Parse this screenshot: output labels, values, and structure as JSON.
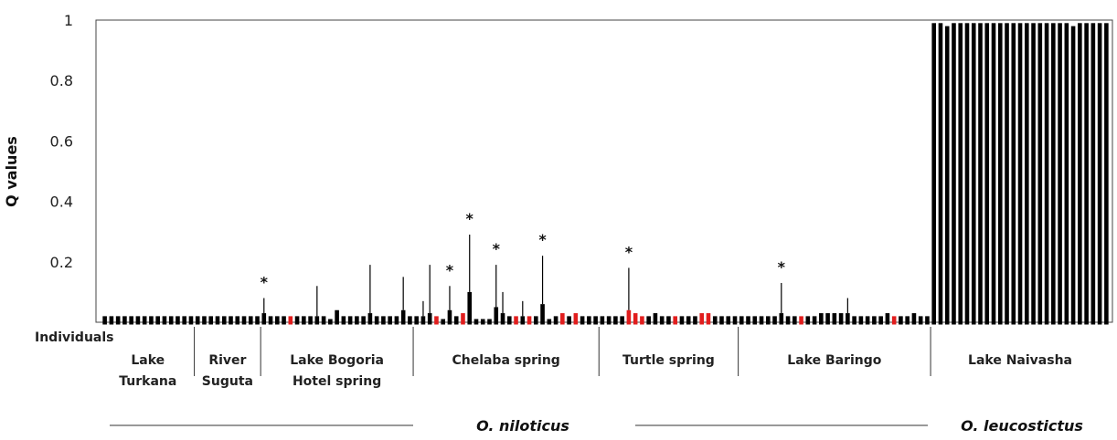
{
  "chart_data": {
    "type": "bar",
    "ylabel": "Q values",
    "xlabel": "Individuals",
    "ylim": [
      0,
      1
    ],
    "yticks": [
      {
        "value": 1,
        "label": "1"
      },
      {
        "value": 0.8,
        "label": "0.8"
      },
      {
        "value": 0.6,
        "label": "0.6"
      },
      {
        "value": 0.4,
        "label": "0.4"
      },
      {
        "value": 0.2,
        "label": "0.2"
      }
    ],
    "grid": false,
    "colors": {
      "default": "#000000",
      "highlight": "#e11d1d"
    },
    "groups": [
      {
        "label_lines": [
          "Lake",
          "Turkana"
        ],
        "n": 14
      },
      {
        "label_lines": [
          "River",
          "Suguta"
        ],
        "n": 10
      },
      {
        "label_lines": [
          "Lake Bogoria",
          "Hotel spring"
        ],
        "n": 23
      },
      {
        "label_lines": [
          "Chelaba spring"
        ],
        "n": 28
      },
      {
        "label_lines": [
          "Turtle spring"
        ],
        "n": 21
      },
      {
        "label_lines": [
          "Lake Baringo"
        ],
        "n": 29
      },
      {
        "label_lines": [
          "Lake Naivasha"
        ],
        "n": 27
      }
    ],
    "bars": [
      {
        "value": 0.02,
        "err": 0,
        "highlight": false
      },
      {
        "value": 0.02,
        "err": 0,
        "highlight": false
      },
      {
        "value": 0.02,
        "err": 0,
        "highlight": false
      },
      {
        "value": 0.02,
        "err": 0,
        "highlight": false
      },
      {
        "value": 0.02,
        "err": 0,
        "highlight": false
      },
      {
        "value": 0.02,
        "err": 0,
        "highlight": false
      },
      {
        "value": 0.02,
        "err": 0,
        "highlight": false
      },
      {
        "value": 0.02,
        "err": 0,
        "highlight": false
      },
      {
        "value": 0.02,
        "err": 0,
        "highlight": false
      },
      {
        "value": 0.02,
        "err": 0,
        "highlight": false
      },
      {
        "value": 0.02,
        "err": 0,
        "highlight": false
      },
      {
        "value": 0.02,
        "err": 0,
        "highlight": false
      },
      {
        "value": 0.02,
        "err": 0,
        "highlight": false
      },
      {
        "value": 0.02,
        "err": 0,
        "highlight": false
      },
      {
        "value": 0.02,
        "err": 0,
        "highlight": false
      },
      {
        "value": 0.02,
        "err": 0,
        "highlight": false
      },
      {
        "value": 0.02,
        "err": 0,
        "highlight": false
      },
      {
        "value": 0.02,
        "err": 0,
        "highlight": false
      },
      {
        "value": 0.02,
        "err": 0,
        "highlight": false
      },
      {
        "value": 0.02,
        "err": 0,
        "highlight": false
      },
      {
        "value": 0.02,
        "err": 0,
        "highlight": false
      },
      {
        "value": 0.02,
        "err": 0,
        "highlight": false
      },
      {
        "value": 0.02,
        "err": 0,
        "highlight": false
      },
      {
        "value": 0.02,
        "err": 0,
        "highlight": false
      },
      {
        "value": 0.03,
        "err": 0.05,
        "highlight": false,
        "star": true
      },
      {
        "value": 0.02,
        "err": 0,
        "highlight": false
      },
      {
        "value": 0.02,
        "err": 0,
        "highlight": false
      },
      {
        "value": 0.02,
        "err": 0,
        "highlight": false
      },
      {
        "value": 0.02,
        "err": 0,
        "highlight": true
      },
      {
        "value": 0.02,
        "err": 0,
        "highlight": false
      },
      {
        "value": 0.02,
        "err": 0,
        "highlight": false
      },
      {
        "value": 0.02,
        "err": 0,
        "highlight": false
      },
      {
        "value": 0.02,
        "err": 0.1,
        "highlight": false
      },
      {
        "value": 0.02,
        "err": 0,
        "highlight": false
      },
      {
        "value": 0.01,
        "err": 0,
        "highlight": false
      },
      {
        "value": 0.04,
        "err": 0,
        "highlight": false
      },
      {
        "value": 0.02,
        "err": 0,
        "highlight": false
      },
      {
        "value": 0.02,
        "err": 0,
        "highlight": false
      },
      {
        "value": 0.02,
        "err": 0,
        "highlight": false
      },
      {
        "value": 0.02,
        "err": 0,
        "highlight": false
      },
      {
        "value": 0.03,
        "err": 0.16,
        "highlight": false
      },
      {
        "value": 0.02,
        "err": 0,
        "highlight": false
      },
      {
        "value": 0.02,
        "err": 0,
        "highlight": false
      },
      {
        "value": 0.02,
        "err": 0,
        "highlight": false
      },
      {
        "value": 0.02,
        "err": 0,
        "highlight": false
      },
      {
        "value": 0.04,
        "err": 0.11,
        "highlight": false
      },
      {
        "value": 0.02,
        "err": 0,
        "highlight": false
      },
      {
        "value": 0.02,
        "err": 0,
        "highlight": false
      },
      {
        "value": 0.02,
        "err": 0.05,
        "highlight": false
      },
      {
        "value": 0.03,
        "err": 0.16,
        "highlight": false
      },
      {
        "value": 0.02,
        "err": 0,
        "highlight": true
      },
      {
        "value": 0.01,
        "err": 0,
        "highlight": false
      },
      {
        "value": 0.04,
        "err": 0.08,
        "highlight": false,
        "star": true
      },
      {
        "value": 0.02,
        "err": 0,
        "highlight": false
      },
      {
        "value": 0.03,
        "err": 0,
        "highlight": true
      },
      {
        "value": 0.1,
        "err": 0.19,
        "highlight": false,
        "star": true
      },
      {
        "value": 0.01,
        "err": 0,
        "highlight": false
      },
      {
        "value": 0.01,
        "err": 0,
        "highlight": false
      },
      {
        "value": 0.01,
        "err": 0,
        "highlight": false
      },
      {
        "value": 0.05,
        "err": 0.14,
        "highlight": false,
        "star": true
      },
      {
        "value": 0.03,
        "err": 0.07,
        "highlight": false
      },
      {
        "value": 0.02,
        "err": 0,
        "highlight": false
      },
      {
        "value": 0.02,
        "err": 0,
        "highlight": true
      },
      {
        "value": 0.02,
        "err": 0.05,
        "highlight": false
      },
      {
        "value": 0.02,
        "err": 0,
        "highlight": true
      },
      {
        "value": 0.02,
        "err": 0,
        "highlight": false
      },
      {
        "value": 0.06,
        "err": 0.16,
        "highlight": false,
        "star": true
      },
      {
        "value": 0.01,
        "err": 0,
        "highlight": false
      },
      {
        "value": 0.02,
        "err": 0,
        "highlight": false
      },
      {
        "value": 0.03,
        "err": 0,
        "highlight": true
      },
      {
        "value": 0.02,
        "err": 0,
        "highlight": false
      },
      {
        "value": 0.03,
        "err": 0,
        "highlight": true
      },
      {
        "value": 0.02,
        "err": 0,
        "highlight": false
      },
      {
        "value": 0.02,
        "err": 0,
        "highlight": false
      },
      {
        "value": 0.02,
        "err": 0,
        "highlight": false
      },
      {
        "value": 0.02,
        "err": 0,
        "highlight": false
      },
      {
        "value": 0.02,
        "err": 0,
        "highlight": false
      },
      {
        "value": 0.02,
        "err": 0,
        "highlight": false
      },
      {
        "value": 0.02,
        "err": 0,
        "highlight": false
      },
      {
        "value": 0.04,
        "err": 0.14,
        "highlight": true,
        "star": true
      },
      {
        "value": 0.03,
        "err": 0,
        "highlight": true
      },
      {
        "value": 0.02,
        "err": 0,
        "highlight": true
      },
      {
        "value": 0.02,
        "err": 0,
        "highlight": false
      },
      {
        "value": 0.03,
        "err": 0,
        "highlight": false
      },
      {
        "value": 0.02,
        "err": 0,
        "highlight": false
      },
      {
        "value": 0.02,
        "err": 0,
        "highlight": false
      },
      {
        "value": 0.02,
        "err": 0,
        "highlight": true
      },
      {
        "value": 0.02,
        "err": 0,
        "highlight": false
      },
      {
        "value": 0.02,
        "err": 0,
        "highlight": false
      },
      {
        "value": 0.02,
        "err": 0,
        "highlight": false
      },
      {
        "value": 0.03,
        "err": 0,
        "highlight": true
      },
      {
        "value": 0.03,
        "err": 0,
        "highlight": true
      },
      {
        "value": 0.02,
        "err": 0,
        "highlight": false
      },
      {
        "value": 0.02,
        "err": 0,
        "highlight": false
      },
      {
        "value": 0.02,
        "err": 0,
        "highlight": false
      },
      {
        "value": 0.02,
        "err": 0,
        "highlight": false
      },
      {
        "value": 0.02,
        "err": 0,
        "highlight": false
      },
      {
        "value": 0.02,
        "err": 0,
        "highlight": false
      },
      {
        "value": 0.02,
        "err": 0,
        "highlight": false
      },
      {
        "value": 0.02,
        "err": 0,
        "highlight": false
      },
      {
        "value": 0.02,
        "err": 0,
        "highlight": false
      },
      {
        "value": 0.02,
        "err": 0,
        "highlight": false
      },
      {
        "value": 0.03,
        "err": 0.1,
        "highlight": false,
        "star": true
      },
      {
        "value": 0.02,
        "err": 0,
        "highlight": false
      },
      {
        "value": 0.02,
        "err": 0,
        "highlight": false
      },
      {
        "value": 0.02,
        "err": 0,
        "highlight": true
      },
      {
        "value": 0.02,
        "err": 0,
        "highlight": false
      },
      {
        "value": 0.02,
        "err": 0,
        "highlight": false
      },
      {
        "value": 0.03,
        "err": 0,
        "highlight": false
      },
      {
        "value": 0.03,
        "err": 0,
        "highlight": false
      },
      {
        "value": 0.03,
        "err": 0,
        "highlight": false
      },
      {
        "value": 0.03,
        "err": 0,
        "highlight": false
      },
      {
        "value": 0.03,
        "err": 0.05,
        "highlight": false
      },
      {
        "value": 0.02,
        "err": 0,
        "highlight": false
      },
      {
        "value": 0.02,
        "err": 0,
        "highlight": false
      },
      {
        "value": 0.02,
        "err": 0,
        "highlight": false
      },
      {
        "value": 0.02,
        "err": 0,
        "highlight": false
      },
      {
        "value": 0.02,
        "err": 0,
        "highlight": false
      },
      {
        "value": 0.03,
        "err": 0,
        "highlight": false
      },
      {
        "value": 0.02,
        "err": 0,
        "highlight": true
      },
      {
        "value": 0.02,
        "err": 0,
        "highlight": false
      },
      {
        "value": 0.02,
        "err": 0,
        "highlight": false
      },
      {
        "value": 0.03,
        "err": 0,
        "highlight": false
      },
      {
        "value": 0.02,
        "err": 0,
        "highlight": false
      },
      {
        "value": 0.02,
        "err": 0,
        "highlight": false
      },
      {
        "value": 0.99,
        "err": 0,
        "highlight": false
      },
      {
        "value": 0.99,
        "err": 0,
        "highlight": false
      },
      {
        "value": 0.98,
        "err": 0,
        "highlight": false
      },
      {
        "value": 0.99,
        "err": 0,
        "highlight": false
      },
      {
        "value": 0.99,
        "err": 0,
        "highlight": false
      },
      {
        "value": 0.99,
        "err": 0,
        "highlight": false
      },
      {
        "value": 0.99,
        "err": 0,
        "highlight": false
      },
      {
        "value": 0.99,
        "err": 0,
        "highlight": false
      },
      {
        "value": 0.99,
        "err": 0,
        "highlight": false
      },
      {
        "value": 0.99,
        "err": 0,
        "highlight": false
      },
      {
        "value": 0.99,
        "err": 0,
        "highlight": false
      },
      {
        "value": 0.99,
        "err": 0,
        "highlight": false
      },
      {
        "value": 0.99,
        "err": 0,
        "highlight": false
      },
      {
        "value": 0.99,
        "err": 0,
        "highlight": false
      },
      {
        "value": 0.99,
        "err": 0,
        "highlight": false
      },
      {
        "value": 0.99,
        "err": 0,
        "highlight": false
      },
      {
        "value": 0.99,
        "err": 0,
        "highlight": false
      },
      {
        "value": 0.99,
        "err": 0,
        "highlight": false
      },
      {
        "value": 0.99,
        "err": 0,
        "highlight": false
      },
      {
        "value": 0.99,
        "err": 0,
        "highlight": false
      },
      {
        "value": 0.99,
        "err": 0,
        "highlight": false
      },
      {
        "value": 0.98,
        "err": 0,
        "highlight": false
      },
      {
        "value": 0.99,
        "err": 0,
        "highlight": false
      },
      {
        "value": 0.99,
        "err": 0,
        "highlight": false
      },
      {
        "value": 0.99,
        "err": 0,
        "highlight": false
      },
      {
        "value": 0.99,
        "err": 0,
        "highlight": false
      },
      {
        "value": 0.99,
        "err": 0,
        "highlight": false
      }
    ],
    "star_symbol": "*",
    "species": [
      {
        "label": "O. niloticus"
      },
      {
        "label": "O. leucostictus"
      }
    ]
  }
}
